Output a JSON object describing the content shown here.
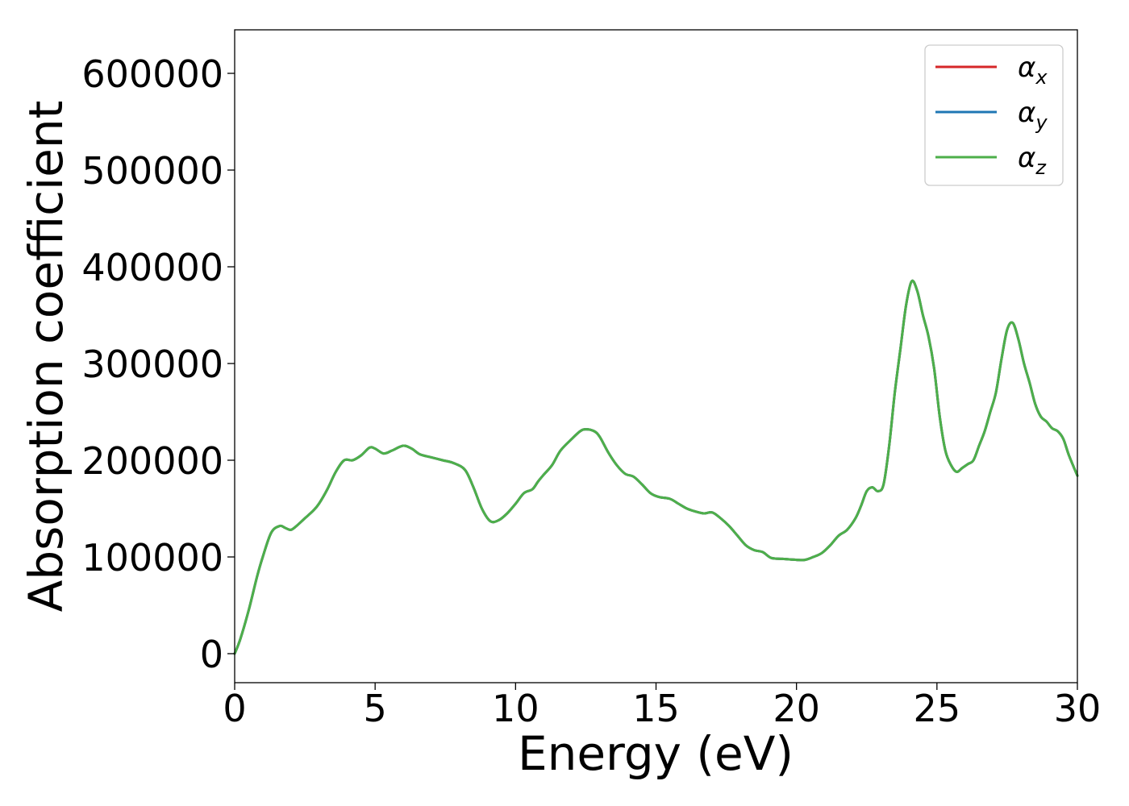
{
  "chart_data": {
    "type": "line",
    "title": "",
    "xlabel": "Energy (eV)",
    "ylabel": "Absorption coefficient",
    "xlim": [
      0,
      30
    ],
    "ylim": [
      -30000,
      645000
    ],
    "xticks": [
      0,
      5,
      10,
      15,
      20,
      25,
      30
    ],
    "xtick_labels": [
      "0",
      "5",
      "10",
      "15",
      "20",
      "25",
      "30"
    ],
    "yticks": [
      0,
      100000,
      200000,
      300000,
      400000,
      500000,
      600000
    ],
    "ytick_labels": [
      "0",
      "100000",
      "200000",
      "300000",
      "400000",
      "500000",
      "600000"
    ],
    "grid": false,
    "legend_position": "top-right",
    "x": [
      0,
      0.2,
      0.5,
      0.8,
      1.0,
      1.3,
      1.6,
      1.8,
      2.0,
      2.2,
      2.5,
      2.8,
      3.0,
      3.3,
      3.6,
      3.9,
      4.2,
      4.5,
      4.8,
      5.0,
      5.3,
      5.6,
      6.0,
      6.3,
      6.6,
      7.0,
      7.4,
      7.8,
      8.2,
      8.5,
      8.8,
      9.1,
      9.4,
      9.7,
      10.0,
      10.3,
      10.6,
      10.8,
      11.0,
      11.3,
      11.6,
      12.0,
      12.3,
      12.5,
      12.8,
      13.0,
      13.3,
      13.6,
      13.9,
      14.2,
      14.5,
      14.8,
      15.1,
      15.5,
      15.8,
      16.1,
      16.4,
      16.7,
      17.0,
      17.3,
      17.6,
      17.9,
      18.2,
      18.5,
      18.8,
      19.1,
      19.5,
      20.0,
      20.3,
      20.6,
      20.9,
      21.2,
      21.5,
      21.8,
      22.1,
      22.3,
      22.5,
      22.7,
      22.9,
      23.1,
      23.3,
      23.5,
      23.7,
      23.9,
      24.1,
      24.3,
      24.5,
      24.7,
      24.9,
      25.1,
      25.3,
      25.5,
      25.7,
      25.9,
      26.1,
      26.3,
      26.5,
      26.7,
      26.9,
      27.1,
      27.3,
      27.5,
      27.7,
      27.9,
      28.1,
      28.3,
      28.5,
      28.7,
      28.9,
      29.1,
      29.3,
      29.5,
      29.7,
      30.0
    ],
    "series": [
      {
        "name": "α_x",
        "color": "#d62728",
        "values": [
          0,
          15000,
          45000,
          80000,
          100000,
          125000,
          132000,
          130000,
          128000,
          132000,
          140000,
          148000,
          155000,
          170000,
          188000,
          200000,
          200000,
          205000,
          213000,
          212000,
          207000,
          210000,
          215000,
          212000,
          206000,
          203000,
          200000,
          197000,
          190000,
          172000,
          150000,
          137000,
          138000,
          145000,
          155000,
          166000,
          170000,
          178000,
          185000,
          195000,
          210000,
          222000,
          230000,
          232000,
          230000,
          224000,
          208000,
          195000,
          186000,
          183000,
          175000,
          166000,
          162000,
          160000,
          155000,
          150000,
          147000,
          145000,
          146000,
          140000,
          132000,
          122000,
          112000,
          107000,
          105000,
          99000,
          98000,
          97000,
          97000,
          100000,
          104000,
          112000,
          122000,
          128000,
          140000,
          153000,
          168000,
          172000,
          168000,
          175000,
          215000,
          270000,
          315000,
          360000,
          385000,
          375000,
          350000,
          328000,
          295000,
          245000,
          210000,
          195000,
          188000,
          192000,
          196000,
          200000,
          215000,
          230000,
          250000,
          270000,
          305000,
          335000,
          342000,
          325000,
          300000,
          280000,
          258000,
          245000,
          240000,
          233000,
          230000,
          222000,
          205000,
          184000
        ]
      },
      {
        "name": "α_y",
        "color": "#1f77b4",
        "values": [
          0,
          15000,
          45000,
          80000,
          100000,
          125000,
          132000,
          130000,
          128000,
          132000,
          140000,
          148000,
          155000,
          170000,
          188000,
          200000,
          200000,
          205000,
          213000,
          212000,
          207000,
          210000,
          215000,
          212000,
          206000,
          203000,
          200000,
          197000,
          190000,
          172000,
          150000,
          137000,
          138000,
          145000,
          155000,
          166000,
          170000,
          178000,
          185000,
          195000,
          210000,
          222000,
          230000,
          232000,
          230000,
          224000,
          208000,
          195000,
          186000,
          183000,
          175000,
          166000,
          162000,
          160000,
          155000,
          150000,
          147000,
          145000,
          146000,
          140000,
          132000,
          122000,
          112000,
          107000,
          105000,
          99000,
          98000,
          97000,
          97000,
          100000,
          104000,
          112000,
          122000,
          128000,
          140000,
          153000,
          168000,
          172000,
          168000,
          175000,
          215000,
          270000,
          315000,
          360000,
          385000,
          375000,
          350000,
          328000,
          295000,
          245000,
          210000,
          195000,
          188000,
          192000,
          196000,
          200000,
          215000,
          230000,
          250000,
          270000,
          305000,
          335000,
          342000,
          325000,
          300000,
          280000,
          258000,
          245000,
          240000,
          233000,
          230000,
          222000,
          205000,
          184000
        ]
      },
      {
        "name": "α_z",
        "color": "#4daf4a",
        "values": [
          0,
          15000,
          45000,
          80000,
          100000,
          125000,
          132000,
          130000,
          128000,
          132000,
          140000,
          148000,
          155000,
          170000,
          188000,
          200000,
          200000,
          205000,
          213000,
          212000,
          207000,
          210000,
          215000,
          212000,
          206000,
          203000,
          200000,
          197000,
          190000,
          172000,
          150000,
          137000,
          138000,
          145000,
          155000,
          166000,
          170000,
          178000,
          185000,
          195000,
          210000,
          222000,
          230000,
          232000,
          230000,
          224000,
          208000,
          195000,
          186000,
          183000,
          175000,
          166000,
          162000,
          160000,
          155000,
          150000,
          147000,
          145000,
          146000,
          140000,
          132000,
          122000,
          112000,
          107000,
          105000,
          99000,
          98000,
          97000,
          97000,
          100000,
          104000,
          112000,
          122000,
          128000,
          140000,
          153000,
          168000,
          172000,
          168000,
          175000,
          215000,
          270000,
          315000,
          360000,
          385000,
          375000,
          350000,
          328000,
          295000,
          245000,
          210000,
          195000,
          188000,
          192000,
          196000,
          200000,
          215000,
          230000,
          250000,
          270000,
          305000,
          335000,
          342000,
          325000,
          300000,
          280000,
          258000,
          245000,
          240000,
          233000,
          230000,
          222000,
          205000,
          184000
        ]
      }
    ]
  }
}
